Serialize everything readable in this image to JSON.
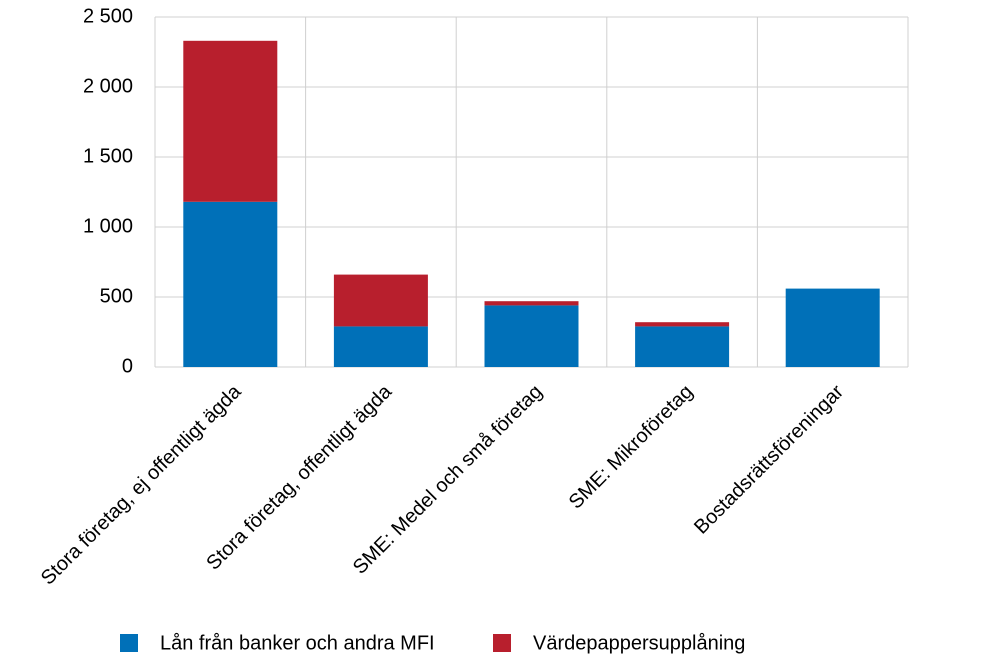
{
  "chart_data": {
    "type": "stacked-bar",
    "categories": [
      "Stora företag, ej offentligt ägda",
      "Stora företag, offentligt ägda",
      "SME: Medel och små företag",
      "SME: Mikroföretag",
      "Bostadsrättsföreningar"
    ],
    "series": [
      {
        "name": "Lån från banker och andra MFI",
        "color": "#0070b8",
        "values": [
          1180,
          290,
          440,
          290,
          560
        ]
      },
      {
        "name": "Värdepappersupplåning",
        "color": "#b81f2d",
        "values": [
          1150,
          370,
          30,
          30,
          0
        ]
      }
    ],
    "ylim": [
      0,
      2500
    ],
    "yticks": [
      0,
      500,
      {
        "value": 1000,
        "label": "1 000"
      },
      {
        "value": 1500,
        "label": "1 500"
      },
      {
        "value": 2000,
        "label": "2 000"
      },
      {
        "value": 2500,
        "label": "2 500"
      }
    ],
    "grid": true
  }
}
